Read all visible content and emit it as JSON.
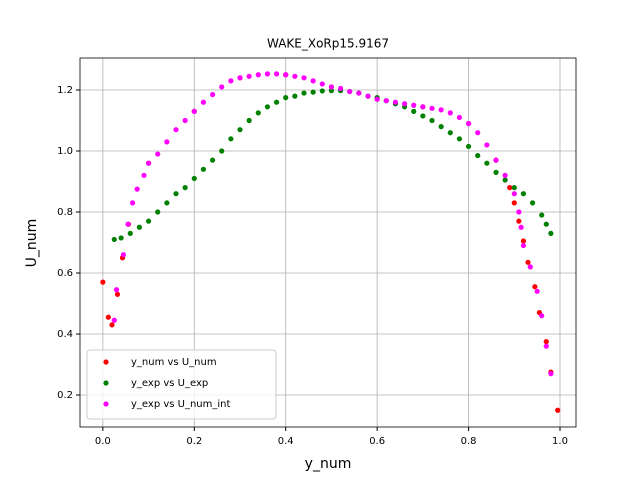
{
  "chart_data": {
    "type": "scatter",
    "title": "WAKE_XoRp15.9167",
    "x_label": "y_num",
    "y_label": "U_num",
    "y_label_color": "#ff0000",
    "xlim": [
      -0.05,
      1.035
    ],
    "ylim": [
      0.095,
      1.305
    ],
    "xticks": [
      {
        "value": 0,
        "label": "0.0"
      },
      0.2,
      0.4,
      0.6,
      0.8,
      {
        "value": 1,
        "label": "1.0"
      }
    ],
    "yticks": [
      0.2,
      0.4,
      0.6,
      0.8,
      {
        "value": 1,
        "label": "1.0"
      },
      1.2
    ],
    "grid": true,
    "legend": "lower left",
    "series": [
      {
        "name": "y_num vs U_num",
        "color": "#ff0000",
        "x": [
          0.0,
          0.012,
          0.02,
          0.032,
          0.043,
          0.056,
          0.1,
          0.2,
          0.3,
          0.4,
          0.5,
          0.6,
          0.7,
          0.8,
          0.86,
          0.89,
          0.9,
          0.91,
          0.92,
          0.93,
          0.945,
          0.955,
          0.97,
          0.98,
          0.995
        ],
        "y": [
          0.57,
          0.455,
          0.43,
          0.53,
          0.65,
          0.76,
          0.96,
          1.13,
          1.24,
          1.25,
          1.21,
          1.17,
          1.145,
          1.09,
          0.97,
          0.88,
          0.83,
          0.77,
          0.705,
          0.635,
          0.555,
          0.47,
          0.375,
          0.275,
          0.15
        ]
      },
      {
        "name": "y_exp vs U_exp",
        "color": "#008000",
        "x": [
          0.025,
          0.04,
          0.06,
          0.08,
          0.1,
          0.12,
          0.14,
          0.16,
          0.18,
          0.2,
          0.22,
          0.24,
          0.26,
          0.28,
          0.3,
          0.32,
          0.34,
          0.36,
          0.38,
          0.4,
          0.42,
          0.44,
          0.46,
          0.48,
          0.5,
          0.52,
          0.54,
          0.56,
          0.58,
          0.6,
          0.62,
          0.64,
          0.66,
          0.68,
          0.7,
          0.72,
          0.74,
          0.76,
          0.78,
          0.8,
          0.82,
          0.84,
          0.86,
          0.88,
          0.9,
          0.92,
          0.94,
          0.96,
          0.97,
          0.98
        ],
        "y": [
          0.71,
          0.715,
          0.73,
          0.75,
          0.77,
          0.8,
          0.83,
          0.86,
          0.88,
          0.91,
          0.94,
          0.97,
          1.0,
          1.04,
          1.07,
          1.1,
          1.125,
          1.145,
          1.16,
          1.175,
          1.18,
          1.19,
          1.193,
          1.197,
          1.198,
          1.198,
          1.195,
          1.19,
          1.18,
          1.175,
          1.165,
          1.155,
          1.145,
          1.13,
          1.115,
          1.1,
          1.08,
          1.06,
          1.04,
          1.015,
          0.985,
          0.96,
          0.93,
          0.905,
          0.88,
          0.86,
          0.83,
          0.79,
          0.76,
          0.73
        ]
      },
      {
        "name": "y_exp vs U_num_int",
        "color": "#ff00ff",
        "x": [
          0.025,
          0.03,
          0.045,
          0.055,
          0.065,
          0.075,
          0.09,
          0.1,
          0.12,
          0.14,
          0.16,
          0.18,
          0.2,
          0.22,
          0.24,
          0.26,
          0.28,
          0.3,
          0.32,
          0.34,
          0.36,
          0.38,
          0.4,
          0.42,
          0.44,
          0.46,
          0.48,
          0.5,
          0.52,
          0.54,
          0.56,
          0.58,
          0.6,
          0.62,
          0.64,
          0.66,
          0.68,
          0.7,
          0.72,
          0.74,
          0.76,
          0.78,
          0.8,
          0.82,
          0.84,
          0.86,
          0.88,
          0.9,
          0.91,
          0.915,
          0.92,
          0.935,
          0.95,
          0.96,
          0.97,
          0.98
        ],
        "y": [
          0.445,
          0.545,
          0.66,
          0.76,
          0.83,
          0.875,
          0.92,
          0.96,
          0.99,
          1.03,
          1.07,
          1.1,
          1.13,
          1.16,
          1.185,
          1.21,
          1.23,
          1.24,
          1.245,
          1.25,
          1.253,
          1.253,
          1.25,
          1.245,
          1.24,
          1.23,
          1.22,
          1.21,
          1.205,
          1.195,
          1.19,
          1.18,
          1.17,
          1.165,
          1.16,
          1.155,
          1.15,
          1.145,
          1.14,
          1.135,
          1.125,
          1.11,
          1.09,
          1.06,
          1.02,
          0.97,
          0.92,
          0.86,
          0.8,
          0.75,
          0.69,
          0.62,
          0.54,
          0.46,
          0.36,
          0.27
        ]
      }
    ]
  }
}
